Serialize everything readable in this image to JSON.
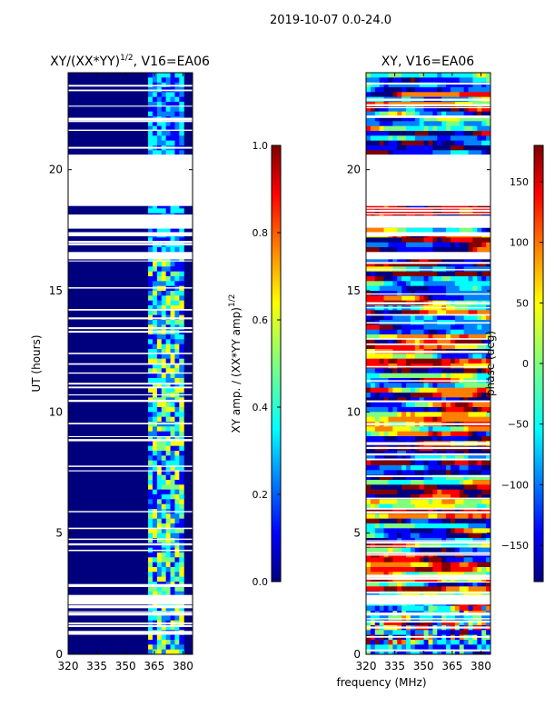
{
  "figure_title": "2019-10-07 0.0-24.0",
  "shared_xlabel": "frequency (MHz)",
  "colormap": [
    "#00007f",
    "#0000ff",
    "#007fff",
    "#00ffff",
    "#7fff7f",
    "#ffff00",
    "#ff7f00",
    "#ff0000",
    "#7f0000"
  ],
  "background_color": "#00007f",
  "chart_data": [
    {
      "type": "heatmap",
      "title_main": "XY/(XX*YY)",
      "title_sup": "1/2",
      "title_rest": ", V16=EA06",
      "xlabel": "",
      "ylabel": "UT (hours)",
      "xlim": [
        320,
        385
      ],
      "ylim": [
        0,
        24
      ],
      "xticks": [
        320,
        335,
        350,
        365,
        380
      ],
      "yticks": [
        0,
        5,
        10,
        15,
        20
      ],
      "colorbar": {
        "label_main": "XY amp. / (XX*YY amp)",
        "label_sup": "1/2",
        "range": [
          0.0,
          1.0
        ],
        "ticks": [
          "0.0",
          "0.2",
          "0.4",
          "0.6",
          "0.8",
          "1.0"
        ]
      },
      "flagged_hours": [
        [
          20.55,
          20.62
        ],
        [
          18.5,
          20.55
        ],
        [
          17.6,
          18.1
        ],
        [
          17.25,
          17.42
        ],
        [
          16.3,
          16.6
        ],
        [
          2.05,
          2.45
        ],
        [
          1.6,
          1.72
        ]
      ],
      "active_band_mhz": [
        361,
        381
      ],
      "description_values": "low amplitude (~0.0-0.1) outside 361-381 MHz; 0.3-0.8 in band"
    },
    {
      "type": "heatmap",
      "title_main": "XY, V16=EA06",
      "xlabel": "frequency (MHz)",
      "ylabel": "",
      "xlim": [
        320,
        385
      ],
      "ylim": [
        0,
        24
      ],
      "xticks": [
        320,
        335,
        350,
        365,
        380
      ],
      "yticks": [
        0,
        5,
        10,
        15,
        20
      ],
      "colorbar": {
        "label_main": "phase (deg)",
        "range": [
          -180,
          180
        ],
        "ticks": [
          "-150",
          "-100",
          "-50",
          "0",
          "50",
          "100",
          "150"
        ]
      },
      "flagged_hours": [
        [
          20.55,
          20.62
        ],
        [
          18.5,
          20.55
        ],
        [
          17.6,
          18.1
        ],
        [
          17.25,
          17.42
        ],
        [
          16.3,
          16.6
        ],
        [
          2.05,
          2.45
        ],
        [
          1.6,
          1.72
        ]
      ]
    }
  ]
}
